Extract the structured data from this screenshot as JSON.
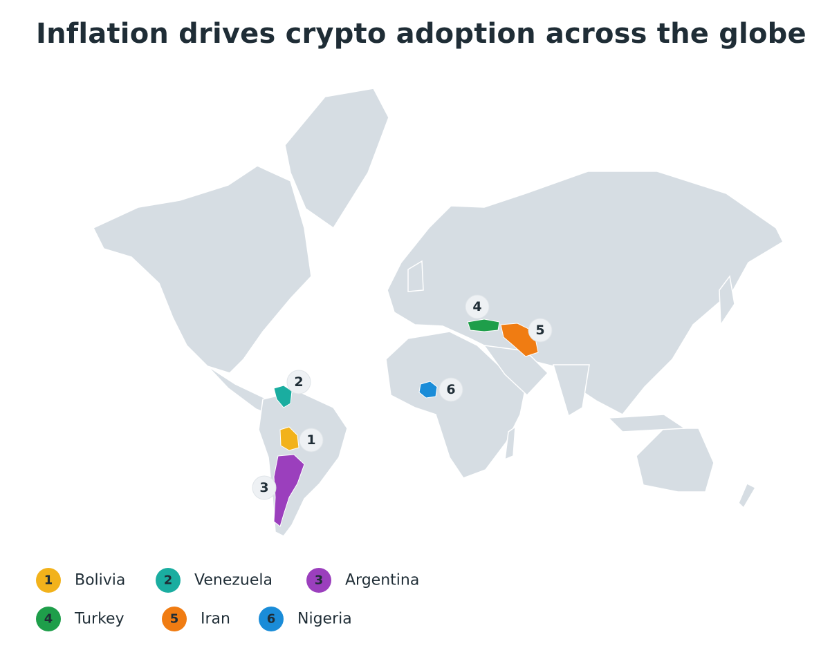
{
  "title": "Inflation drives crypto adoption across the globe",
  "countries": [
    {
      "rank": 1,
      "name": "Bolivia",
      "color": "#f2b21b"
    },
    {
      "rank": 2,
      "name": "Venezuela",
      "color": "#1aada0"
    },
    {
      "rank": 3,
      "name": "Argentina",
      "color": "#9b3fbd"
    },
    {
      "rank": 4,
      "name": "Turkey",
      "color": "#1e9e4a"
    },
    {
      "rank": 5,
      "name": "Iran",
      "color": "#f07c12"
    },
    {
      "rank": 6,
      "name": "Nigeria",
      "color": "#1a8cd8"
    }
  ]
}
